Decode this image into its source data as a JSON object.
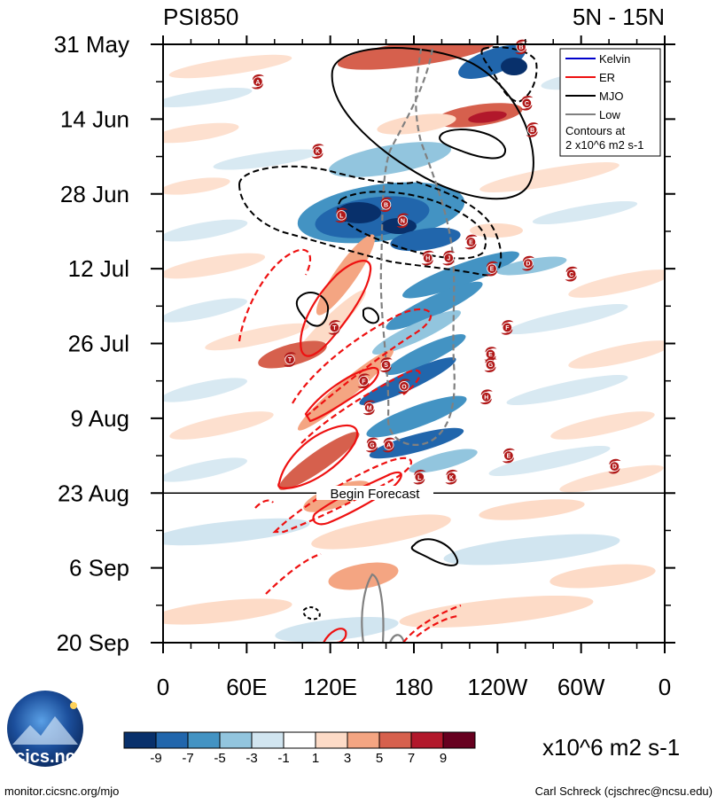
{
  "chart_data": {
    "type": "heatmap",
    "title_left": "PSI850",
    "title_right": "5N - 15N",
    "x_ticks": [
      "0",
      "60E",
      "120E",
      "180",
      "120W",
      "60W",
      "0"
    ],
    "y_ticks": [
      "31 May",
      "14 Jun",
      "28 Jun",
      "12 Jul",
      "26 Jul",
      "9 Aug",
      "23 Aug",
      "6 Sep",
      "20 Sep"
    ],
    "x_range_deg": [
      0,
      360
    ],
    "t_range_days": [
      0,
      112
    ],
    "forecast_day": 84,
    "begin_forecast_label": "Begin Forecast",
    "legend": {
      "entries": [
        {
          "name": "Kelvin",
          "color": "#0000cc"
        },
        {
          "name": "ER",
          "color": "#ee1111"
        },
        {
          "name": "MJO",
          "color": "#000000"
        },
        {
          "name": "Low",
          "color": "#808080"
        }
      ],
      "note_line1": "Contours at",
      "note_line2": "2 x10^6 m2 s-1"
    },
    "colorbar": {
      "labels": [
        "-9",
        "-7",
        "-5",
        "-3",
        "-1",
        "1",
        "3",
        "5",
        "7",
        "9"
      ],
      "colors": [
        "#08306b",
        "#2166ac",
        "#4393c3",
        "#92c5de",
        "#d1e5f0",
        "#ffffff",
        "#fddbc7",
        "#f4a582",
        "#d6604d",
        "#b2182b",
        "#67001f"
      ],
      "units": "x10^6 m2 s-1"
    },
    "storms": [
      {
        "letter": "A",
        "lon": 68,
        "day": 7
      },
      {
        "letter": "B",
        "lon": 257,
        "day": 0.5
      },
      {
        "letter": "C",
        "lon": 261,
        "day": 11
      },
      {
        "letter": "B",
        "lon": 265,
        "day": 16
      },
      {
        "letter": "K",
        "lon": 111,
        "day": 20
      },
      {
        "letter": "L",
        "lon": 128,
        "day": 32
      },
      {
        "letter": "B",
        "lon": 160,
        "day": 30
      },
      {
        "letter": "N",
        "lon": 172,
        "day": 33
      },
      {
        "letter": "E",
        "lon": 221,
        "day": 37
      },
      {
        "letter": "J",
        "lon": 205,
        "day": 40
      },
      {
        "letter": "H",
        "lon": 190,
        "day": 40
      },
      {
        "letter": "D",
        "lon": 262,
        "day": 41
      },
      {
        "letter": "E",
        "lon": 236,
        "day": 42
      },
      {
        "letter": "C",
        "lon": 293,
        "day": 43
      },
      {
        "letter": "T",
        "lon": 123,
        "day": 53
      },
      {
        "letter": "F",
        "lon": 247,
        "day": 53
      },
      {
        "letter": "T",
        "lon": 91,
        "day": 59
      },
      {
        "letter": "E",
        "lon": 235,
        "day": 58
      },
      {
        "letter": "S",
        "lon": 160,
        "day": 60
      },
      {
        "letter": "G",
        "lon": 235,
        "day": 60
      },
      {
        "letter": "F",
        "lon": 144,
        "day": 63
      },
      {
        "letter": "O",
        "lon": 173,
        "day": 64
      },
      {
        "letter": "H",
        "lon": 232,
        "day": 66
      },
      {
        "letter": "M",
        "lon": 148,
        "day": 68
      },
      {
        "letter": "G",
        "lon": 150,
        "day": 75
      },
      {
        "letter": "A",
        "lon": 162,
        "day": 75
      },
      {
        "letter": "E",
        "lon": 248,
        "day": 77
      },
      {
        "letter": "D",
        "lon": 324,
        "day": 79
      },
      {
        "letter": "L",
        "lon": 184,
        "day": 81
      },
      {
        "letter": "K",
        "lon": 207,
        "day": 81
      }
    ]
  },
  "footer": {
    "logo_text": "cics.nc",
    "left_text": "monitor.cicsnc.org/mjo",
    "right_text": "Carl Schreck (cjschrec@ncsu.edu)"
  }
}
